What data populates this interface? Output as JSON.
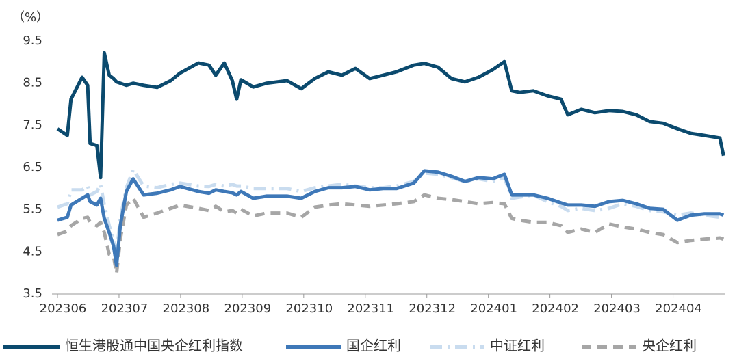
{
  "chart_data": {
    "type": "line",
    "y_label": "（%）",
    "x": [
      0,
      0.16,
      0.22,
      0.4,
      0.49,
      0.53,
      0.64,
      0.7,
      0.76,
      0.84,
      0.91,
      0.96,
      1.02,
      1.12,
      1.23,
      1.4,
      1.62,
      1.84,
      1.99,
      2.29,
      2.46,
      2.57,
      2.71,
      2.84,
      2.91,
      2.98,
      3.18,
      3.4,
      3.73,
      3.96,
      4.18,
      4.4,
      4.62,
      4.84,
      5.07,
      5.29,
      5.51,
      5.79,
      5.96,
      6.18,
      6.4,
      6.62,
      6.84,
      7.07,
      7.26,
      7.38,
      7.51,
      7.73,
      7.96,
      8.18,
      8.29,
      8.51,
      8.73,
      8.96,
      9.18,
      9.4,
      9.62,
      9.84,
      10.07,
      10.29,
      10.51,
      10.76,
      10.82
    ],
    "xlim": [
      0,
      10.85
    ],
    "xticks": [
      {
        "value": 0,
        "label": "202306"
      },
      {
        "value": 1,
        "label": "202307"
      },
      {
        "value": 2,
        "label": "202308"
      },
      {
        "value": 3,
        "label": "202309"
      },
      {
        "value": 4,
        "label": "202310"
      },
      {
        "value": 5,
        "label": "202311"
      },
      {
        "value": 6,
        "label": "202312"
      },
      {
        "value": 7,
        "label": "202401"
      },
      {
        "value": 8,
        "label": "202402"
      },
      {
        "value": 9,
        "label": "202403"
      },
      {
        "value": 10,
        "label": "202404"
      }
    ],
    "ylim": [
      3.5,
      9.5
    ],
    "yticks": [
      3.5,
      4.5,
      5.5,
      6.5,
      7.5,
      8.5,
      9.5
    ],
    "grid": false,
    "legend": "bottom",
    "series": [
      {
        "name": "恒生港股通中国央企红利指数",
        "color": "#0b4a6e",
        "line_style": "solid",
        "values": [
          7.42,
          7.26,
          8.12,
          8.64,
          8.45,
          7.07,
          7.02,
          6.26,
          9.22,
          8.69,
          8.61,
          8.53,
          8.5,
          8.45,
          8.5,
          8.45,
          8.4,
          8.56,
          8.74,
          8.98,
          8.93,
          8.69,
          8.98,
          8.56,
          8.12,
          8.58,
          8.41,
          8.5,
          8.56,
          8.37,
          8.61,
          8.77,
          8.69,
          8.85,
          8.61,
          8.69,
          8.77,
          8.93,
          8.97,
          8.88,
          8.61,
          8.53,
          8.64,
          8.82,
          9.01,
          8.32,
          8.28,
          8.32,
          8.2,
          8.12,
          7.75,
          7.88,
          7.8,
          7.85,
          7.83,
          7.75,
          7.59,
          7.55,
          7.42,
          7.31,
          7.26,
          7.2,
          6.78
        ]
      },
      {
        "name": "国企红利",
        "color": "#3e78b8",
        "line_style": "solid",
        "values": [
          5.25,
          5.32,
          5.61,
          5.77,
          5.85,
          5.69,
          5.61,
          5.77,
          5.29,
          4.96,
          4.64,
          4.18,
          5.12,
          5.93,
          6.23,
          5.85,
          5.89,
          5.97,
          6.05,
          5.93,
          5.89,
          5.97,
          5.93,
          5.9,
          5.85,
          5.93,
          5.77,
          5.82,
          5.82,
          5.77,
          5.93,
          6.02,
          6.02,
          6.05,
          5.97,
          6.0,
          6.0,
          6.13,
          6.42,
          6.39,
          6.29,
          6.17,
          6.26,
          6.23,
          6.34,
          5.85,
          5.85,
          5.85,
          5.77,
          5.66,
          5.61,
          5.61,
          5.58,
          5.69,
          5.72,
          5.64,
          5.53,
          5.51,
          5.25,
          5.37,
          5.4,
          5.4,
          5.37
        ]
      },
      {
        "name": "中证红利",
        "color": "#c9dcef",
        "line_style": "dashdot",
        "values": [
          5.56,
          5.64,
          5.97,
          5.97,
          6.06,
          5.85,
          5.93,
          6.1,
          5.61,
          5.12,
          4.8,
          4.48,
          5.29,
          6.02,
          6.45,
          6.06,
          6.02,
          6.1,
          6.13,
          6.06,
          6.05,
          6.1,
          6.06,
          6.1,
          6.06,
          6.06,
          6.0,
          6.0,
          6.0,
          5.93,
          6.02,
          6.06,
          6.1,
          6.06,
          6.02,
          6.02,
          6.06,
          6.17,
          6.37,
          6.34,
          6.26,
          6.17,
          6.23,
          6.17,
          6.26,
          5.77,
          5.8,
          5.85,
          5.69,
          5.58,
          5.48,
          5.53,
          5.48,
          5.53,
          5.64,
          5.58,
          5.48,
          5.45,
          5.37,
          5.42,
          5.37,
          5.32,
          5.29
        ]
      },
      {
        "name": "央企红利",
        "color": "#a6a6a6",
        "line_style": "dashed",
        "values": [
          4.91,
          4.99,
          5.12,
          5.29,
          5.32,
          5.2,
          5.12,
          5.2,
          4.96,
          4.44,
          4.39,
          3.99,
          4.8,
          5.61,
          5.77,
          5.32,
          5.42,
          5.53,
          5.61,
          5.53,
          5.48,
          5.58,
          5.45,
          5.48,
          5.42,
          5.51,
          5.35,
          5.42,
          5.42,
          5.32,
          5.56,
          5.61,
          5.64,
          5.61,
          5.58,
          5.61,
          5.64,
          5.69,
          5.85,
          5.77,
          5.74,
          5.69,
          5.64,
          5.67,
          5.64,
          5.29,
          5.25,
          5.2,
          5.2,
          5.12,
          4.96,
          5.04,
          4.96,
          5.16,
          5.09,
          5.04,
          4.96,
          4.91,
          4.72,
          4.77,
          4.8,
          4.83,
          4.8
        ]
      }
    ]
  }
}
